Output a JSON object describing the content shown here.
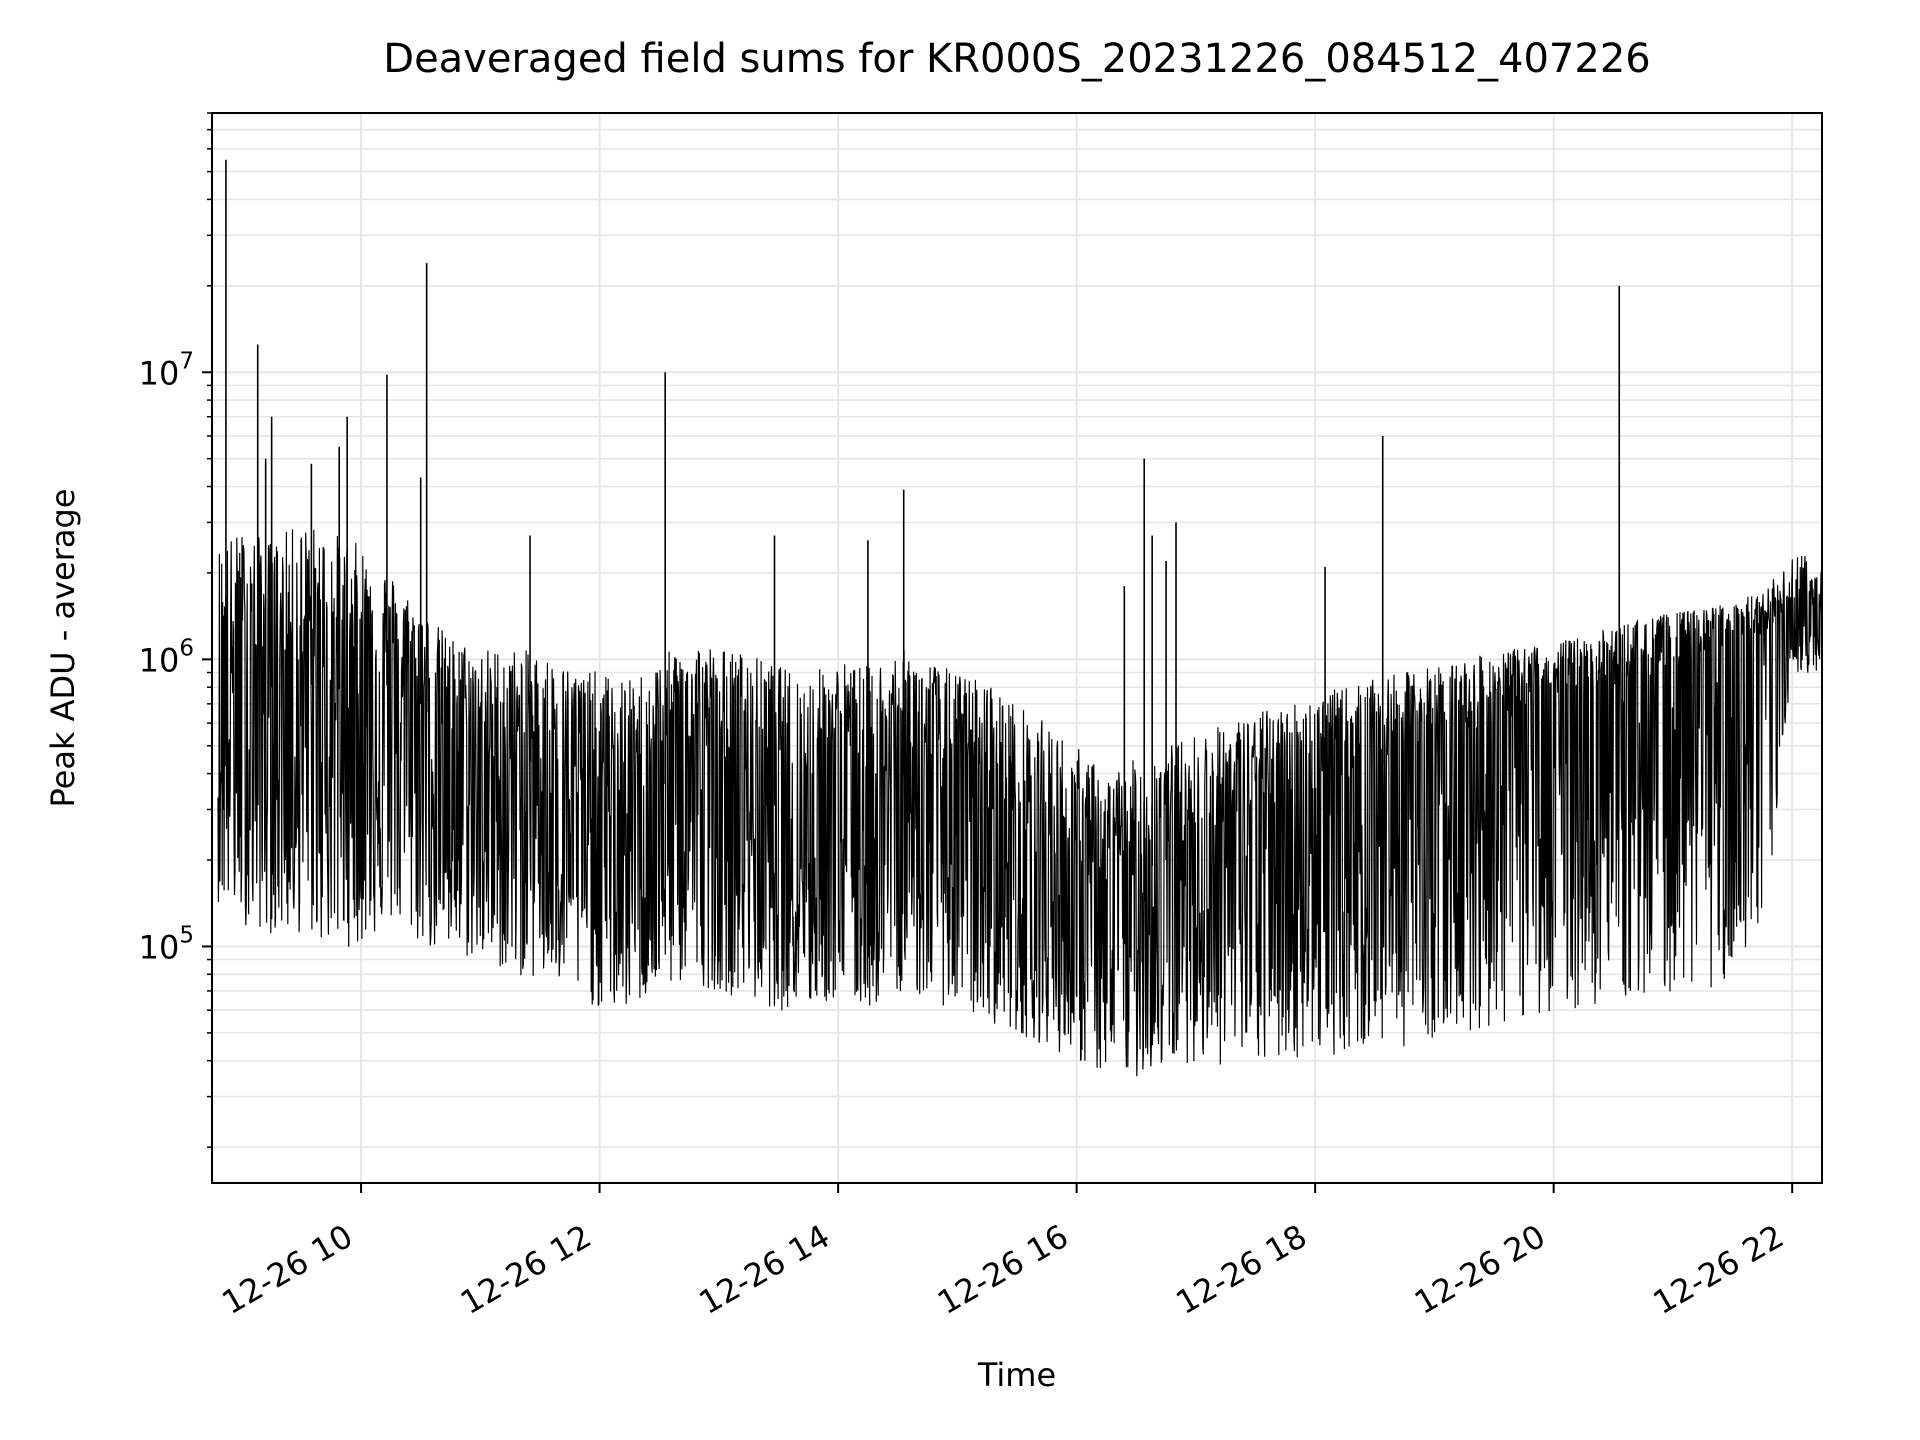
{
  "chart_data": {
    "type": "line",
    "title": "Deaveraged field sums for KR000S_20231226_084512_407226",
    "xlabel": "Time",
    "ylabel": "Peak ADU - average",
    "yscale": "log",
    "ylim": [
      15000,
      80000000
    ],
    "xlim": [
      "12-26 08:45",
      "12-26 22:15"
    ],
    "x_ticks": [
      "12-26 10",
      "12-26 12",
      "12-26 14",
      "12-26 16",
      "12-26 18",
      "12-26 20",
      "12-26 22"
    ],
    "y_ticks": [
      {
        "base": "10",
        "exp": "5"
      },
      {
        "base": "10",
        "exp": "6"
      },
      {
        "base": "10",
        "exp": "7"
      }
    ],
    "grid": true,
    "line_color": "#000000",
    "grid_color": "#e6e6e6",
    "series": [
      {
        "x": [
          "12-26 08:45",
          "12-26 09:00",
          "12-26 09:15",
          "12-26 09:30",
          "12-26 09:45",
          "12-26 10:00",
          "12-26 10:15",
          "12-26 10:30",
          "12-26 10:45",
          "12-26 11:00",
          "12-26 11:15",
          "12-26 11:30",
          "12-26 11:45",
          "12-26 12:00",
          "12-26 12:15",
          "12-26 12:30",
          "12-26 12:45",
          "12-26 13:00",
          "12-26 13:15",
          "12-26 13:30",
          "12-26 13:45",
          "12-26 14:00",
          "12-26 14:15",
          "12-26 14:30",
          "12-26 14:45",
          "12-26 15:00",
          "12-26 15:15",
          "12-26 15:30",
          "12-26 15:45",
          "12-26 16:00",
          "12-26 16:15",
          "12-26 16:30",
          "12-26 16:45",
          "12-26 17:00",
          "12-26 17:15",
          "12-26 17:30",
          "12-26 17:45",
          "12-26 18:00",
          "12-26 18:15",
          "12-26 18:30",
          "12-26 18:45",
          "12-26 19:00",
          "12-26 19:15",
          "12-26 19:30",
          "12-26 19:45",
          "12-26 20:00",
          "12-26 20:15",
          "12-26 20:30",
          "12-26 20:45",
          "12-26 21:00",
          "12-26 21:15",
          "12-26 21:30",
          "12-26 21:45",
          "12-26 22:00",
          "12-26 22:15"
        ],
        "y": [
          700000,
          900000,
          800000,
          850000,
          750000,
          900000,
          800000,
          700000,
          500000,
          400000,
          420000,
          450000,
          350000,
          300000,
          250000,
          350000,
          450000,
          400000,
          380000,
          300000,
          280000,
          350000,
          280000,
          400000,
          380000,
          300000,
          280000,
          220000,
          200000,
          150000,
          130000,
          180000,
          200000,
          220000,
          250000,
          280000,
          300000,
          350000,
          380000,
          420000,
          450000,
          500000,
          550000,
          600000,
          650000,
          700000,
          750000,
          800000,
          850000,
          900000,
          1000000,
          1100000,
          1200000,
          1500000,
          1200000
        ],
        "lower": [
          150000,
          120000,
          110000,
          110000,
          100000,
          100000,
          120000,
          100000,
          90000,
          90000,
          80000,
          75000,
          70000,
          60000,
          60000,
          70000,
          75000,
          70000,
          65000,
          60000,
          60000,
          65000,
          60000,
          70000,
          65000,
          60000,
          55000,
          50000,
          45000,
          40000,
          35000,
          35000,
          38000,
          40000,
          38000,
          38000,
          40000,
          42000,
          42000,
          45000,
          45000,
          48000,
          50000,
          52000,
          55000,
          60000,
          60000,
          65000,
          65000,
          70000,
          70000,
          75000,
          80000,
          900000,
          900000
        ],
        "upper": [
          2500000,
          2800000,
          2600000,
          3000000,
          2800000,
          2500000,
          2000000,
          1500000,
          1200000,
          1100000,
          1100000,
          1050000,
          950000,
          900000,
          850000,
          1000000,
          1200000,
          1100000,
          1050000,
          950000,
          900000,
          1000000,
          950000,
          1100000,
          1000000,
          900000,
          850000,
          700000,
          600000,
          500000,
          400000,
          450000,
          500000,
          550000,
          600000,
          650000,
          700000,
          750000,
          800000,
          850000,
          900000,
          950000,
          1000000,
          1050000,
          1100000,
          1150000,
          1200000,
          1300000,
          1400000,
          1450000,
          1500000,
          1600000,
          1700000,
          2300000,
          2400000
        ]
      }
    ],
    "spikes": [
      {
        "x": "12-26 08:52",
        "y": 55000000
      },
      {
        "x": "12-26 09:08",
        "y": 12500000
      },
      {
        "x": "12-26 09:12",
        "y": 5000000
      },
      {
        "x": "12-26 09:15",
        "y": 7000000
      },
      {
        "x": "12-26 09:35",
        "y": 4800000
      },
      {
        "x": "12-26 09:49",
        "y": 5500000
      },
      {
        "x": "12-26 09:53",
        "y": 7000000
      },
      {
        "x": "12-26 10:13",
        "y": 9800000
      },
      {
        "x": "12-26 10:33",
        "y": 24000000
      },
      {
        "x": "12-26 10:30",
        "y": 4300000
      },
      {
        "x": "12-26 11:25",
        "y": 2700000
      },
      {
        "x": "12-26 12:33",
        "y": 10000000
      },
      {
        "x": "12-26 13:28",
        "y": 2700000
      },
      {
        "x": "12-26 14:33",
        "y": 3900000
      },
      {
        "x": "12-26 14:15",
        "y": 2600000
      },
      {
        "x": "12-26 16:34",
        "y": 5000000
      },
      {
        "x": "12-26 16:24",
        "y": 1800000
      },
      {
        "x": "12-26 16:38",
        "y": 2700000
      },
      {
        "x": "12-26 16:50",
        "y": 3000000
      },
      {
        "x": "12-26 16:45",
        "y": 2200000
      },
      {
        "x": "12-26 18:34",
        "y": 6000000
      },
      {
        "x": "12-26 18:05",
        "y": 2100000
      },
      {
        "x": "12-26 20:33",
        "y": 20000000
      }
    ]
  }
}
